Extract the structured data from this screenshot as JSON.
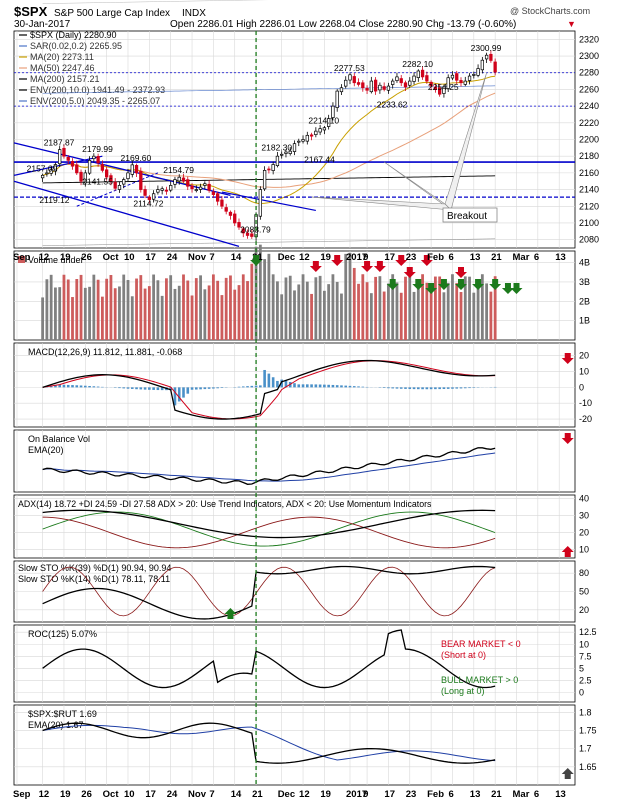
{
  "header": {
    "symbol": "$SPX",
    "description": "S&P 500 Large Cap Index",
    "exchange": "INDX",
    "date": "30-Jan-2017",
    "ohlc": "Open 2286.01  High 2286.01  Low 2268.04  Close 2280.90  Chg -13.79 (-0.60%)",
    "change_arrow": "▼",
    "watermark": "@ StockCharts.com"
  },
  "colors": {
    "price_line": "#000000",
    "up_candle": "#000000",
    "down_candle": "#d0021b",
    "support_line": "#0000cc",
    "ma20": "#c9a000",
    "ma50": "#e8a07a",
    "ma200": "#000000",
    "sar": "#4d74c8",
    "volume_down": "#cd5c5c",
    "volume_up": "#808080",
    "macd_hist": "#4a90c8",
    "signal_red": "#d0021b",
    "signal_green": "#1c7a1c",
    "signal_gray": "#444444",
    "grid": "#d8d8d8"
  },
  "chart_data": [
    {
      "type": "candlestick",
      "panel": "price",
      "title": "$SPX (Daily) 2280.90",
      "legend": [
        {
          "label": "$SPX (Daily) 2280.90",
          "color": "#000000"
        },
        {
          "label": "SAR(0.02,0.2) 2265.95",
          "color": "#4d74c8"
        },
        {
          "label": "MA(20) 2273.11",
          "color": "#c9a000"
        },
        {
          "label": "MA(50) 2247.46",
          "color": "#e8a07a"
        },
        {
          "label": "MA(200) 2157.21",
          "color": "#000000"
        },
        {
          "label": "ENV(200,10.0) 1941.49 - 2372.93",
          "color": "#000000"
        },
        {
          "label": "ENV(200,5.0) 2049.35 - 2265.07",
          "color": "#4d74c8"
        }
      ],
      "ylim": [
        2070,
        2330
      ],
      "yticks": [
        2080,
        2100,
        2120,
        2140,
        2160,
        2180,
        2200,
        2220,
        2240,
        2260,
        2280,
        2300,
        2320
      ],
      "x_range": [
        0,
        151
      ],
      "close": [
        2157.09,
        2160,
        2164,
        2170,
        2187.87,
        2180,
        2175,
        2168,
        2160,
        2150,
        2160,
        2175,
        2179.99,
        2172,
        2163,
        2155,
        2150,
        2141.55,
        2145,
        2152,
        2160,
        2169.6,
        2160,
        2140,
        2133,
        2128,
        2135,
        2140,
        2141,
        2138,
        2145,
        2152,
        2154.79,
        2150,
        2144,
        2141,
        2140,
        2143,
        2147,
        2139,
        2134,
        2126,
        2120,
        2114,
        2109,
        2100,
        2095,
        2088,
        2085,
        2083.79,
        2110,
        2140,
        2163,
        2164,
        2170,
        2180,
        2182.3,
        2185,
        2186,
        2195,
        2198,
        2200,
        2205,
        2204,
        2210,
        2213,
        2214.1,
        2225,
        2240,
        2258,
        2262,
        2271,
        2277.53,
        2268,
        2266,
        2262,
        2259,
        2270,
        2258,
        2265,
        2260,
        2264,
        2270,
        2275,
        2268,
        2263,
        2270,
        2276,
        2282.1,
        2275,
        2270,
        2264,
        2260,
        2254.25,
        2263,
        2274,
        2277,
        2271,
        2268,
        2270,
        2276,
        2278,
        2285,
        2295,
        2300.99,
        2294.69,
        2280.9
      ],
      "annotations": [
        {
          "x": 4,
          "y": 2187.87,
          "text": "2187.87"
        },
        {
          "x": 0,
          "y": 2157.09,
          "text": "2157.09"
        },
        {
          "x": 3,
          "y": 2119.12,
          "text": "2119.12"
        },
        {
          "x": 13,
          "y": 2179.99,
          "text": "2179.99"
        },
        {
          "x": 13,
          "y": 2141.55,
          "text": "2141.55"
        },
        {
          "x": 22,
          "y": 2169.6,
          "text": "2169.60"
        },
        {
          "x": 32,
          "y": 2154.79,
          "text": "2154.79"
        },
        {
          "x": 25,
          "y": 2114.72,
          "text": "2114.72"
        },
        {
          "x": 50,
          "y": 2083.79,
          "text": "2083.79"
        },
        {
          "x": 55,
          "y": 2182.3,
          "text": "2182.30"
        },
        {
          "x": 66,
          "y": 2214.1,
          "text": "2214.10"
        },
        {
          "x": 72,
          "y": 2277.53,
          "text": "2277.53"
        },
        {
          "x": 88,
          "y": 2282.1,
          "text": "2282.10"
        },
        {
          "x": 104,
          "y": 2300.99,
          "text": "2300.99"
        },
        {
          "x": 94,
          "y": 2254.25,
          "text": "2254.25"
        },
        {
          "x": 82,
          "y": 2233.62,
          "text": "2233.62"
        },
        {
          "x": 65,
          "y": 2167.44,
          "text": "2167.44"
        }
      ],
      "callout": {
        "text": "Breakout",
        "price": 2295.84
      },
      "horizontal_lines": [
        2173,
        2131
      ],
      "dotted_lines": [
        2280,
        2240
      ]
    },
    {
      "type": "bar",
      "panel": "volume",
      "title": "Volume undef",
      "yticks_labels": [
        "1B",
        "2B",
        "3B",
        "4B"
      ],
      "yticks": [
        1,
        2,
        3,
        4
      ],
      "ylim": [
        0,
        4.6
      ],
      "down_arrows_at": [
        70,
        75,
        82,
        85,
        90,
        92,
        96,
        104
      ],
      "up_arrows_at": [
        88,
        94,
        97,
        100,
        104,
        108,
        112,
        115,
        117
      ]
    },
    {
      "type": "line",
      "panel": "macd",
      "title": "MACD(12,26,9) 11.812, 11.881, -0.068",
      "series": [
        {
          "name": "MACD(12,26,9) 11.812"
        },
        {
          "name": "11.881"
        },
        {
          "name": "-0.068"
        }
      ],
      "ylim": [
        -25,
        28
      ],
      "yticks": [
        -20,
        -10,
        0,
        10,
        20
      ]
    },
    {
      "type": "line",
      "panel": "obv",
      "title": "On Balance Vol",
      "series": [
        {
          "name": "EMA(20)"
        }
      ]
    },
    {
      "type": "line",
      "panel": "adx",
      "title": "ADX(14) 18.72 +DI 24.59 -DI 27.58 ADX > 20: Use Trend Indicators, ADX < 20: Use Momentum Indicators",
      "ylim": [
        5,
        42
      ],
      "yticks": [
        10,
        20,
        30,
        40
      ]
    },
    {
      "type": "line",
      "panel": "sto",
      "title": "Slow STO %K(39) %D(1) 90.94, 90.94",
      "subtitle": "Slow STO %K(14) %D(1) 78.11, 78.11",
      "ylim": [
        0,
        100
      ],
      "yticks": [
        20,
        50,
        80
      ]
    },
    {
      "type": "line",
      "panel": "roc",
      "title": "ROC(125) 5.07%",
      "ylim": [
        -2,
        14
      ],
      "yticks": [
        0,
        2.5,
        5,
        7.5,
        10,
        12.5
      ],
      "notes": [
        {
          "text": "BEAR MARKET < 0",
          "color": "#d0021b"
        },
        {
          "text": "(Short at 0)",
          "color": "#d0021b"
        },
        {
          "text": "BULL MARKET > 0",
          "color": "#1c7a1c"
        },
        {
          "text": "(Long at 0)",
          "color": "#1c7a1c"
        }
      ]
    },
    {
      "type": "line",
      "panel": "ratio",
      "title": "$SPX:$RUT 1.69",
      "series": [
        {
          "name": "EMA(20) 1.67"
        }
      ],
      "ylim": [
        1.6,
        1.82
      ],
      "yticks": [
        1.65,
        1.7,
        1.75,
        1.8
      ]
    }
  ],
  "x_axis": {
    "price_labels": [
      {
        "x": 0,
        "text": "Sep"
      },
      {
        "x": 6,
        "text": "12"
      },
      {
        "x": 11,
        "text": "19"
      },
      {
        "x": 16,
        "text": "26"
      },
      {
        "x": 21,
        "text": "Oct"
      },
      {
        "x": 26,
        "text": "10"
      },
      {
        "x": 31,
        "text": "17"
      },
      {
        "x": 36,
        "text": "24"
      },
      {
        "x": 41,
        "text": "Nov"
      },
      {
        "x": 46,
        "text": "7"
      },
      {
        "x": 51,
        "text": "14"
      },
      {
        "x": 56,
        "text": "21"
      },
      {
        "x": 62,
        "text": "Dec"
      },
      {
        "x": 67,
        "text": "12"
      },
      {
        "x": 72,
        "text": "19"
      },
      {
        "x": 78,
        "text": "2017"
      },
      {
        "x": 82,
        "text": "9"
      },
      {
        "x": 87,
        "text": "17"
      },
      {
        "x": 92,
        "text": "23"
      },
      {
        "x": 97,
        "text": "Feb"
      },
      {
        "x": 102,
        "text": "6"
      },
      {
        "x": 107,
        "text": "13"
      },
      {
        "x": 112,
        "text": "21"
      },
      {
        "x": 117,
        "text": "Mar"
      },
      {
        "x": 122,
        "text": "6"
      },
      {
        "x": 127,
        "text": "13"
      }
    ],
    "bottom_labels": [
      {
        "x": 0,
        "text": "Sep"
      },
      {
        "x": 6,
        "text": "12"
      },
      {
        "x": 11,
        "text": "19"
      },
      {
        "x": 16,
        "text": "26"
      },
      {
        "x": 21,
        "text": "Oct"
      },
      {
        "x": 26,
        "text": "10"
      },
      {
        "x": 31,
        "text": "17"
      },
      {
        "x": 36,
        "text": "24"
      },
      {
        "x": 41,
        "text": "Nov"
      },
      {
        "x": 46,
        "text": "7"
      },
      {
        "x": 51,
        "text": "14"
      },
      {
        "x": 56,
        "text": "21"
      },
      {
        "x": 62,
        "text": "Dec"
      },
      {
        "x": 67,
        "text": "12"
      },
      {
        "x": 72,
        "text": "19"
      },
      {
        "x": 78,
        "text": "2017"
      },
      {
        "x": 82,
        "text": "9"
      },
      {
        "x": 87,
        "text": "17"
      },
      {
        "x": 92,
        "text": "23"
      },
      {
        "x": 97,
        "text": "Feb"
      },
      {
        "x": 102,
        "text": "6"
      },
      {
        "x": 107,
        "text": "13"
      },
      {
        "x": 112,
        "text": "21"
      },
      {
        "x": 117,
        "text": "Mar"
      },
      {
        "x": 122,
        "text": "6"
      },
      {
        "x": 127,
        "text": "13"
      }
    ]
  }
}
